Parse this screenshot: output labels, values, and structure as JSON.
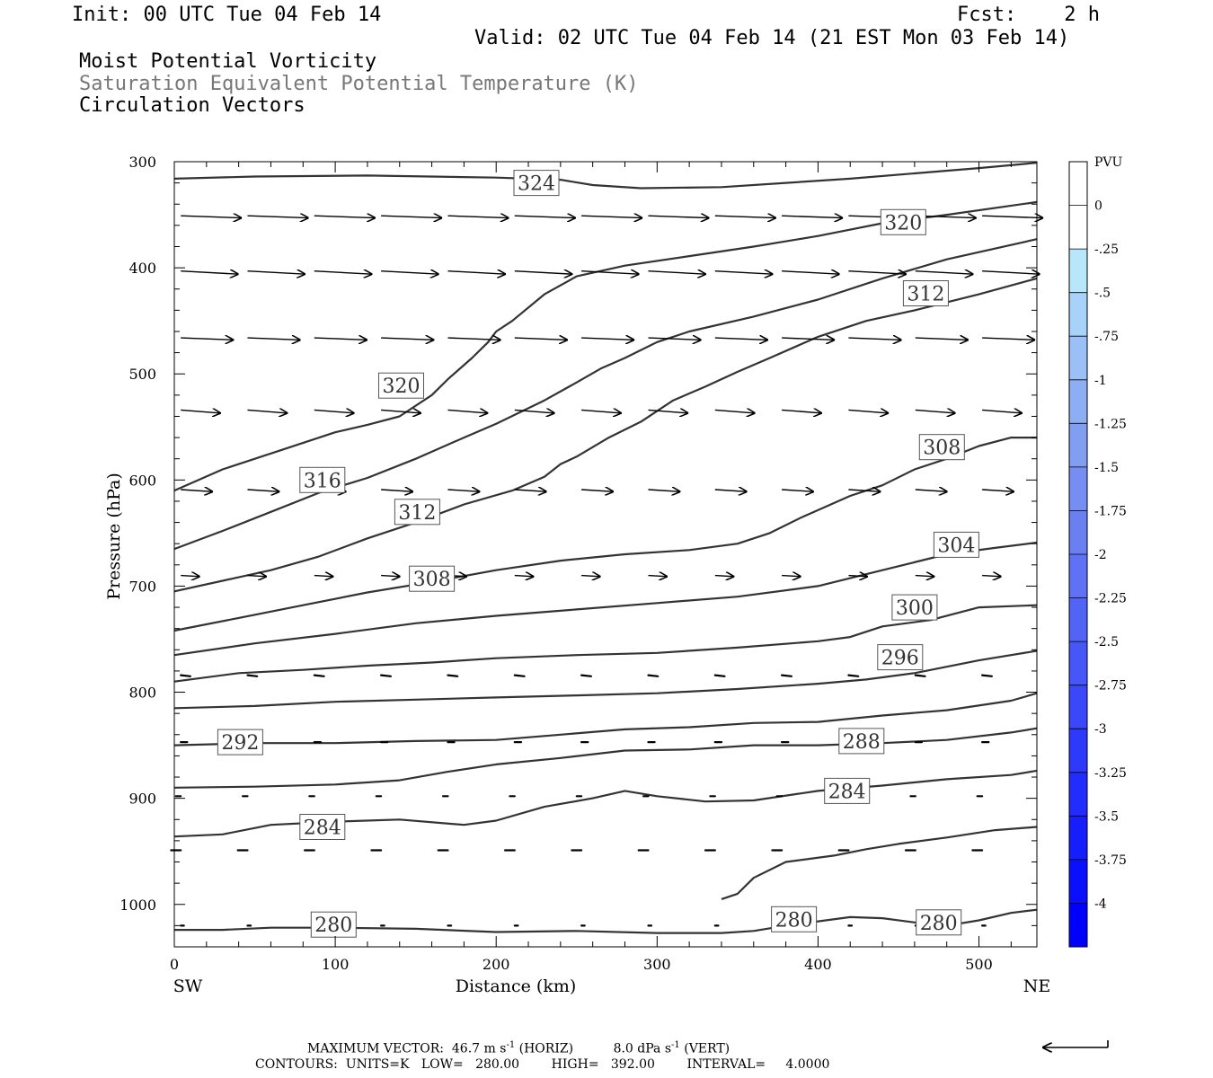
{
  "header": {
    "init": "Init: 00 UTC Tue 04 Feb 14",
    "fcst": "Fcst:    2 h",
    "valid": "Valid: 02 UTC Tue 04 Feb 14 (21 EST Mon 03 Feb 14)",
    "fields": [
      {
        "text": "Moist Potential Vorticity",
        "color": "#000000"
      },
      {
        "text": "Saturation Equivalent Potential Temperature (K)",
        "color": "#777777"
      },
      {
        "text": "Circulation Vectors",
        "color": "#000000"
      }
    ]
  },
  "footer": {
    "max_vector_label": "MAXIMUM VECTOR:",
    "horiz_value": "46.7 m s",
    "horiz_unit_exp": "-1",
    "horiz_tag": "(HORIZ)",
    "vert_value": "8.0 dPa s",
    "vert_unit_exp": "-1",
    "vert_tag": "(VERT)",
    "contours_line": "CONTOURS:  UNITS=K   LOW=   280.00        HIGH=   392.00        INTERVAL=     4.0000"
  },
  "chart_data": {
    "type": "cross-section",
    "xlabel": "Distance (km)",
    "ylabel": "Pressure (hPa)",
    "x_end_labels": {
      "left": "SW",
      "right": "NE"
    },
    "xlim": [
      0,
      536
    ],
    "ylim": [
      1040,
      300
    ],
    "x_ticks": [
      0,
      100,
      200,
      300,
      400,
      500
    ],
    "y_ticks": [
      300,
      400,
      500,
      600,
      700,
      800,
      900,
      1000
    ],
    "colorbar": {
      "unit": "PVU",
      "labels": [
        "0",
        "-.25",
        "-.5",
        "-.75",
        "-1",
        "-1.25",
        "-1.5",
        "-1.75",
        "-2",
        "-2.25",
        "-2.5",
        "-2.75",
        "-3",
        "-3.25",
        "-3.5",
        "-3.75",
        "-4"
      ],
      "colors": [
        "#ffffff",
        "#ffffff",
        "#b8e6fb",
        "#a9d2f8",
        "#9ac0f5",
        "#8eaef3",
        "#829ef1",
        "#768ef1",
        "#6a80f1",
        "#5e72f3",
        "#5264f5",
        "#4656f7",
        "#3a48f9",
        "#2e3afb",
        "#222cfc",
        "#161efd",
        "#0a10fe",
        "#0000ff"
      ]
    },
    "contours": [
      {
        "value": 324,
        "points": [
          [
            0,
            316
          ],
          [
            50,
            314
          ],
          [
            120,
            313
          ],
          [
            200,
            315
          ],
          [
            240,
            317
          ],
          [
            260,
            322
          ],
          [
            290,
            325
          ],
          [
            340,
            324
          ],
          [
            380,
            320
          ],
          [
            420,
            316
          ],
          [
            460,
            311
          ],
          [
            500,
            306
          ],
          [
            536,
            301
          ]
        ]
      },
      {
        "value": 320,
        "points": [
          [
            0,
            610
          ],
          [
            30,
            590
          ],
          [
            60,
            575
          ],
          [
            100,
            555
          ],
          [
            120,
            548
          ],
          [
            140,
            540
          ],
          [
            160,
            520
          ],
          [
            170,
            505
          ],
          [
            185,
            485
          ],
          [
            195,
            470
          ],
          [
            200,
            460
          ],
          [
            210,
            450
          ],
          [
            230,
            425
          ],
          [
            250,
            408
          ],
          [
            280,
            398
          ],
          [
            320,
            389
          ],
          [
            360,
            380
          ],
          [
            400,
            370
          ],
          [
            440,
            358
          ],
          [
            480,
            350
          ],
          [
            536,
            338
          ]
        ]
      },
      {
        "value": 316,
        "points": [
          [
            0,
            665
          ],
          [
            30,
            648
          ],
          [
            60,
            630
          ],
          [
            90,
            612
          ],
          [
            120,
            598
          ],
          [
            150,
            580
          ],
          [
            180,
            560
          ],
          [
            200,
            547
          ],
          [
            230,
            525
          ],
          [
            250,
            508
          ],
          [
            265,
            495
          ],
          [
            280,
            485
          ],
          [
            300,
            470
          ],
          [
            320,
            460
          ],
          [
            360,
            446
          ],
          [
            400,
            430
          ],
          [
            440,
            410
          ],
          [
            480,
            392
          ],
          [
            536,
            373
          ]
        ]
      },
      {
        "value": 312,
        "points": [
          [
            0,
            705
          ],
          [
            30,
            695
          ],
          [
            60,
            685
          ],
          [
            90,
            672
          ],
          [
            120,
            655
          ],
          [
            150,
            640
          ],
          [
            180,
            623
          ],
          [
            210,
            610
          ],
          [
            230,
            597
          ],
          [
            240,
            585
          ],
          [
            250,
            578
          ],
          [
            270,
            560
          ],
          [
            290,
            545
          ],
          [
            310,
            525
          ],
          [
            330,
            512
          ],
          [
            350,
            498
          ],
          [
            370,
            485
          ],
          [
            400,
            465
          ],
          [
            430,
            450
          ],
          [
            460,
            440
          ],
          [
            500,
            425
          ],
          [
            536,
            410
          ]
        ]
      },
      {
        "value": 308,
        "points": [
          [
            0,
            742
          ],
          [
            40,
            730
          ],
          [
            80,
            718
          ],
          [
            120,
            706
          ],
          [
            160,
            696
          ],
          [
            200,
            685
          ],
          [
            240,
            676
          ],
          [
            280,
            670
          ],
          [
            320,
            666
          ],
          [
            350,
            660
          ],
          [
            370,
            650
          ],
          [
            390,
            635
          ],
          [
            420,
            615
          ],
          [
            440,
            605
          ],
          [
            460,
            590
          ],
          [
            480,
            580
          ],
          [
            500,
            568
          ],
          [
            520,
            560
          ],
          [
            536,
            560
          ]
        ]
      },
      {
        "value": 304,
        "points": [
          [
            0,
            765
          ],
          [
            50,
            754
          ],
          [
            100,
            745
          ],
          [
            150,
            735
          ],
          [
            200,
            728
          ],
          [
            250,
            722
          ],
          [
            300,
            716
          ],
          [
            350,
            710
          ],
          [
            400,
            700
          ],
          [
            440,
            685
          ],
          [
            480,
            670
          ],
          [
            510,
            664
          ],
          [
            536,
            659
          ]
        ]
      },
      {
        "value": 300,
        "points": [
          [
            0,
            790
          ],
          [
            40,
            782
          ],
          [
            80,
            779
          ],
          [
            120,
            775
          ],
          [
            160,
            772
          ],
          [
            200,
            768
          ],
          [
            250,
            765
          ],
          [
            300,
            763
          ],
          [
            350,
            758
          ],
          [
            400,
            752
          ],
          [
            420,
            748
          ],
          [
            440,
            738
          ],
          [
            470,
            732
          ],
          [
            500,
            720
          ],
          [
            536,
            718
          ]
        ]
      },
      {
        "value": 296,
        "points": [
          [
            0,
            815
          ],
          [
            50,
            813
          ],
          [
            100,
            809
          ],
          [
            150,
            807
          ],
          [
            200,
            805
          ],
          [
            250,
            803
          ],
          [
            300,
            801
          ],
          [
            350,
            797
          ],
          [
            400,
            792
          ],
          [
            430,
            788
          ],
          [
            460,
            782
          ],
          [
            500,
            770
          ],
          [
            536,
            761
          ]
        ]
      },
      {
        "value": 292,
        "points": [
          [
            0,
            850
          ],
          [
            50,
            848
          ],
          [
            100,
            848
          ],
          [
            150,
            846
          ],
          [
            200,
            845
          ],
          [
            240,
            840
          ],
          [
            280,
            835
          ],
          [
            320,
            833
          ],
          [
            360,
            829
          ],
          [
            400,
            828
          ],
          [
            440,
            822
          ],
          [
            480,
            817
          ],
          [
            520,
            808
          ],
          [
            536,
            801
          ]
        ]
      },
      {
        "value": 288,
        "points": [
          [
            0,
            890
          ],
          [
            50,
            889
          ],
          [
            100,
            887
          ],
          [
            140,
            883
          ],
          [
            170,
            875
          ],
          [
            200,
            868
          ],
          [
            240,
            862
          ],
          [
            280,
            855
          ],
          [
            320,
            854
          ],
          [
            360,
            850
          ],
          [
            400,
            850
          ],
          [
            440,
            848
          ],
          [
            480,
            845
          ],
          [
            520,
            838
          ],
          [
            536,
            834
          ]
        ]
      },
      {
        "value": 284,
        "points": [
          [
            0,
            936
          ],
          [
            30,
            934
          ],
          [
            60,
            925
          ],
          [
            100,
            922
          ],
          [
            140,
            920
          ],
          [
            180,
            925
          ],
          [
            200,
            921
          ],
          [
            230,
            908
          ],
          [
            260,
            900
          ],
          [
            280,
            893
          ],
          [
            300,
            898
          ],
          [
            330,
            903
          ],
          [
            360,
            902
          ],
          [
            400,
            893
          ],
          [
            440,
            888
          ],
          [
            480,
            882
          ],
          [
            520,
            878
          ],
          [
            536,
            874
          ]
        ]
      },
      {
        "value": 284,
        "points": [
          [
            340,
            995
          ],
          [
            350,
            990
          ],
          [
            360,
            975
          ],
          [
            380,
            960
          ],
          [
            410,
            954
          ],
          [
            430,
            948
          ],
          [
            450,
            943
          ],
          [
            480,
            937
          ],
          [
            510,
            930
          ],
          [
            536,
            927
          ]
        ]
      },
      {
        "value": 280,
        "points": [
          [
            0,
            1024
          ],
          [
            30,
            1024
          ],
          [
            60,
            1022
          ],
          [
            100,
            1022
          ],
          [
            150,
            1023
          ],
          [
            200,
            1026
          ],
          [
            250,
            1025
          ],
          [
            300,
            1027
          ],
          [
            340,
            1027
          ],
          [
            360,
            1025
          ],
          [
            380,
            1020
          ],
          [
            420,
            1012
          ],
          [
            440,
            1013
          ],
          [
            460,
            1017
          ],
          [
            480,
            1020
          ],
          [
            500,
            1015
          ],
          [
            520,
            1008
          ],
          [
            536,
            1005
          ]
        ]
      }
    ],
    "contour_labels": [
      {
        "text": "324",
        "x": 225,
        "p": 320
      },
      {
        "text": "320",
        "x": 453,
        "p": 357
      },
      {
        "text": "312",
        "x": 467,
        "p": 424
      },
      {
        "text": "320",
        "x": 141,
        "p": 511
      },
      {
        "text": "308",
        "x": 477,
        "p": 569
      },
      {
        "text": "316",
        "x": 92,
        "p": 600
      },
      {
        "text": "312",
        "x": 151,
        "p": 630
      },
      {
        "text": "304",
        "x": 486,
        "p": 661
      },
      {
        "text": "308",
        "x": 160,
        "p": 693
      },
      {
        "text": "300",
        "x": 460,
        "p": 720
      },
      {
        "text": "296",
        "x": 451,
        "p": 767
      },
      {
        "text": "292",
        "x": 41,
        "p": 847
      },
      {
        "text": "288",
        "x": 427,
        "p": 846
      },
      {
        "text": "284",
        "x": 418,
        "p": 893
      },
      {
        "text": "284",
        "x": 92,
        "p": 927
      },
      {
        "text": "280",
        "x": 385,
        "p": 1014
      },
      {
        "text": "280",
        "x": 99,
        "p": 1019
      },
      {
        "text": "280",
        "x": 475,
        "p": 1017
      }
    ],
    "vectors": [
      {
        "p": 351,
        "x0": 0,
        "dx": 38,
        "dp": 2,
        "count": 13
      },
      {
        "p": 403,
        "x0": 0,
        "dx": 36,
        "dp": 3,
        "count": 13
      },
      {
        "p": 466,
        "x0": 0,
        "dx": 33,
        "dp": 2,
        "count": 13
      },
      {
        "p": 534,
        "x0": 0,
        "dx": 25,
        "dp": 3,
        "count": 13
      },
      {
        "p": 609,
        "x0": 0,
        "dx": 20,
        "dp": 2,
        "count": 13
      },
      {
        "p": 690,
        "x0": 0,
        "dx": 12,
        "dp": 1,
        "count": 13
      },
      {
        "p": 784,
        "x0": 0,
        "dx": 6,
        "dp": 1,
        "count": 13
      },
      {
        "p": 847,
        "x0": 0,
        "dx": 4,
        "dp": 0,
        "count": 13
      },
      {
        "p": 898,
        "x0": 0,
        "dx": -3,
        "dp": 0,
        "count": 13
      },
      {
        "p": 949,
        "x0": 0,
        "dx": -6,
        "dp": 0,
        "count": 13
      },
      {
        "p": 1020,
        "x0": 0,
        "dx": 2,
        "dp": 0,
        "count": 13
      }
    ]
  }
}
